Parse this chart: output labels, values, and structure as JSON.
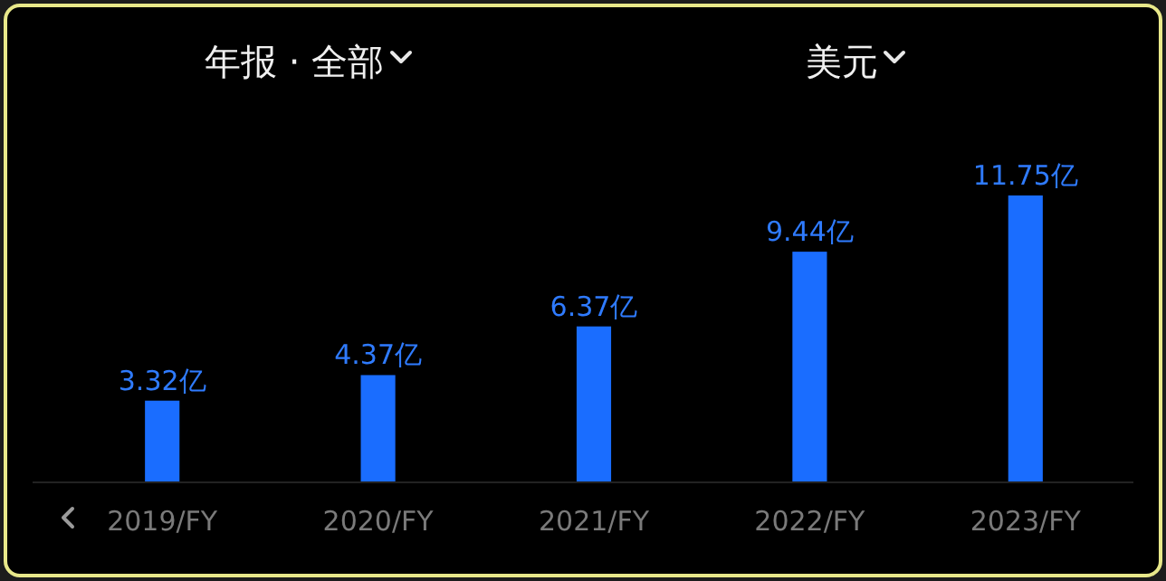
{
  "chart_data": {
    "type": "bar",
    "annotations": [
      "年报 · 全部",
      "美元"
    ],
    "categories": [
      "2019/FY",
      "2020/FY",
      "2021/FY",
      "2022/FY",
      "2023/FY"
    ],
    "values": [
      3.32,
      4.37,
      6.37,
      9.44,
      11.75
    ],
    "value_labels": [
      "3.32亿",
      "4.37亿",
      "6.37亿",
      "9.44亿",
      "11.75亿"
    ],
    "color": "#1a6dff"
  }
}
